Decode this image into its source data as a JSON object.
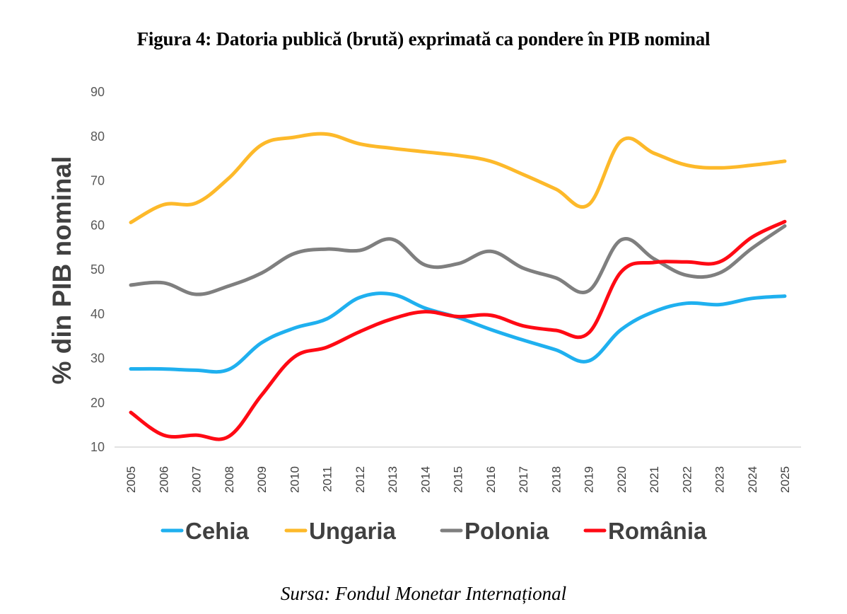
{
  "figure": {
    "title": "Figura 4: Datoria publică (brută) exprimată ca pondere în PIB nominal",
    "source": "Sursa: Fondul Monetar Internațional"
  },
  "chart_data": {
    "type": "line",
    "title": "Figura 4: Datoria publică (brută) exprimată ca pondere în PIB nominal",
    "xlabel": "",
    "ylabel": "% din PIB nominal",
    "ylim": [
      10,
      90
    ],
    "yticks": [
      10,
      20,
      30,
      40,
      50,
      60,
      70,
      80,
      90
    ],
    "grid": false,
    "smooth": true,
    "legend_position": "bottom",
    "x": [
      "2005",
      "2006",
      "2007",
      "2008",
      "2009",
      "2010",
      "2011",
      "2012",
      "2013",
      "2014",
      "2015",
      "2016",
      "2017",
      "2018",
      "2019",
      "2020",
      "2021",
      "2022",
      "2023",
      "2024",
      "2025"
    ],
    "series": [
      {
        "name": "Cehia",
        "color": "#1fb0ef",
        "values": [
          27.6,
          27.6,
          27.3,
          27.5,
          33.5,
          36.8,
          38.9,
          43.7,
          44.4,
          41.3,
          39.2,
          36.5,
          34.1,
          31.9,
          29.4,
          36.5,
          40.5,
          42.4,
          42.1,
          43.5,
          44.0
        ]
      },
      {
        "name": "Ungaria",
        "color": "#fdb92a",
        "values": [
          60.6,
          64.6,
          65.0,
          70.6,
          78.1,
          79.8,
          80.5,
          78.3,
          77.3,
          76.5,
          75.7,
          74.4,
          71.4,
          68.1,
          64.6,
          79.0,
          76.2,
          73.5,
          72.9,
          73.5,
          74.4
        ]
      },
      {
        "name": "Polonia",
        "color": "#7f7f7f",
        "values": [
          46.5,
          47.0,
          44.4,
          46.3,
          49.2,
          53.6,
          54.6,
          54.3,
          56.8,
          51.0,
          51.3,
          54.1,
          50.3,
          48.1,
          45.2,
          56.7,
          52.4,
          48.7,
          49.2,
          54.8,
          59.8
        ]
      },
      {
        "name": "România",
        "color": "#ff0a14",
        "values": [
          17.8,
          12.7,
          12.7,
          12.4,
          21.7,
          30.3,
          32.5,
          36.0,
          38.9,
          40.5,
          39.4,
          39.7,
          37.3,
          36.3,
          35.7,
          49.5,
          51.6,
          51.7,
          51.7,
          57.3,
          60.8
        ]
      }
    ]
  }
}
